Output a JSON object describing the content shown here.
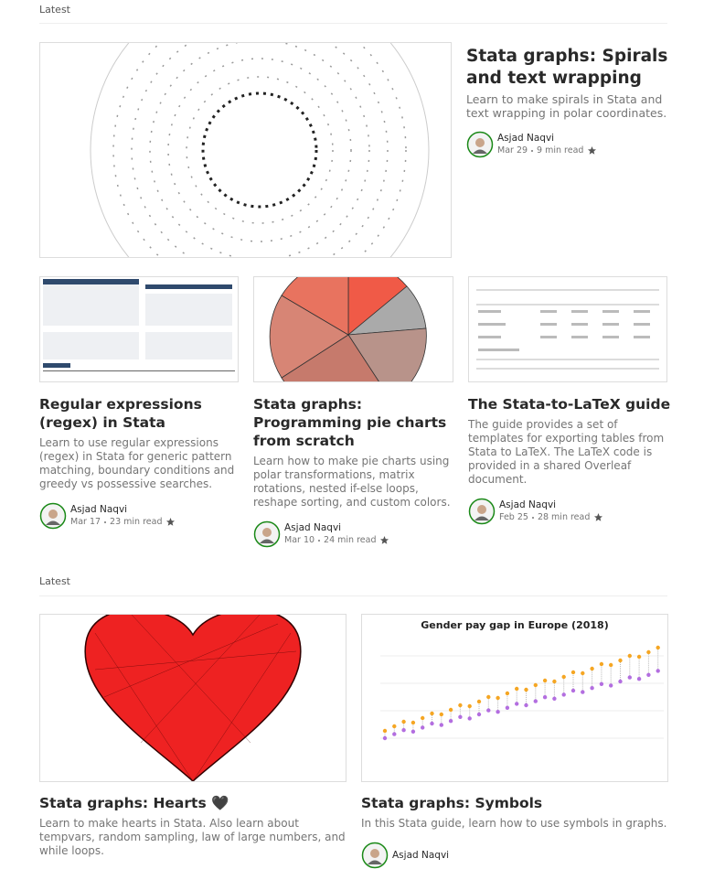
{
  "sections": [
    {
      "label": "Latest",
      "featured": {
        "title": "Stata graphs: Spirals and text wrapping",
        "subtitle": "Learn to make spirals in Stata and text wrapping in polar coordinates.",
        "author": "Asjad Naqvi",
        "date": "Mar 29",
        "read_time": "9 min read"
      },
      "cards": [
        {
          "title": "Regular expressions (regex) in Stata",
          "subtitle": "Learn to use regular expressions (regex) in Stata for generic pattern matching, boundary conditions and greedy vs possessive searches.",
          "author": "Asjad Naqvi",
          "date": "Mar 17",
          "read_time": "23 min read"
        },
        {
          "title": "Stata graphs: Programming pie charts from scratch",
          "subtitle": "Learn how to make pie charts using polar transformations, matrix rotations, nested if-else loops, reshape sorting, and custom colors.",
          "author": "Asjad Naqvi",
          "date": "Mar 10",
          "read_time": "24 min read"
        },
        {
          "title": "The Stata-to-LaTeX guide",
          "subtitle": "The guide provides a set of templates for exporting tables from Stata to LaTeX. The LaTeX code is provided in a shared Overleaf document.",
          "author": "Asjad Naqvi",
          "date": "Feb 25",
          "read_time": "28 min read"
        }
      ]
    },
    {
      "label": "Latest",
      "cards": [
        {
          "title": "Stata graphs: Hearts 🖤",
          "subtitle": "Learn to make hearts in Stata. Also learn about tempvars, random sampling, law of large numbers, and while loops."
        },
        {
          "title": "Stata graphs: Symbols",
          "subtitle": "In this Stata guide, learn how to use symbols in graphs.",
          "author": "Asjad Naqvi",
          "image_title": "Gender pay gap in Europe (2018)"
        }
      ]
    }
  ]
}
